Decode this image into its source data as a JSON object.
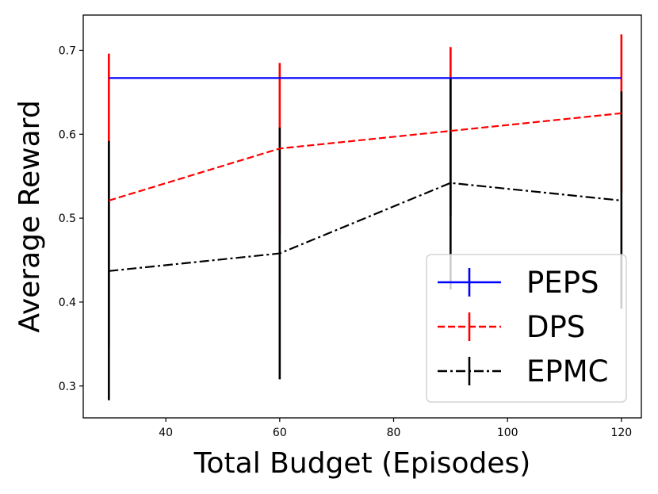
{
  "chart_data": {
    "type": "line",
    "title": "",
    "xlabel": "Total Budget (Episodes)",
    "ylabel": "Average Reward",
    "xlim": [
      25.5,
      123.5
    ],
    "ylim": [
      0.262,
      0.742
    ],
    "xticks": [
      40,
      60,
      80,
      100,
      120
    ],
    "yticks": [
      0.3,
      0.4,
      0.5,
      0.6,
      0.7
    ],
    "xtick_labels": [
      "40",
      "60",
      "80",
      "100",
      "120"
    ],
    "ytick_labels": [
      "0.3",
      "0.4",
      "0.5",
      "0.6",
      "0.7"
    ],
    "grid": false,
    "legend_position": "lower-right",
    "x": [
      30,
      60,
      90,
      120
    ],
    "series": [
      {
        "name": "PEPS",
        "color": "#0000ff",
        "style": "solid",
        "values": [
          0.667,
          0.667,
          0.667,
          0.667
        ],
        "err_low": [
          0.667,
          0.667,
          0.667,
          0.667
        ],
        "err_high": [
          0.667,
          0.667,
          0.667,
          0.667
        ]
      },
      {
        "name": "DPS",
        "color": "#ff0000",
        "style": "dashed",
        "values": [
          0.521,
          0.583,
          0.604,
          0.625
        ],
        "err_low": [
          0.346,
          0.481,
          0.503,
          0.531
        ],
        "err_high": [
          0.696,
          0.685,
          0.704,
          0.719
        ]
      },
      {
        "name": "EPMC",
        "color": "#000000",
        "style": "dashdot",
        "values": [
          0.437,
          0.458,
          0.542,
          0.521
        ],
        "err_low": [
          0.283,
          0.308,
          0.415,
          0.392
        ],
        "err_high": [
          0.592,
          0.608,
          0.667,
          0.651
        ]
      }
    ]
  }
}
